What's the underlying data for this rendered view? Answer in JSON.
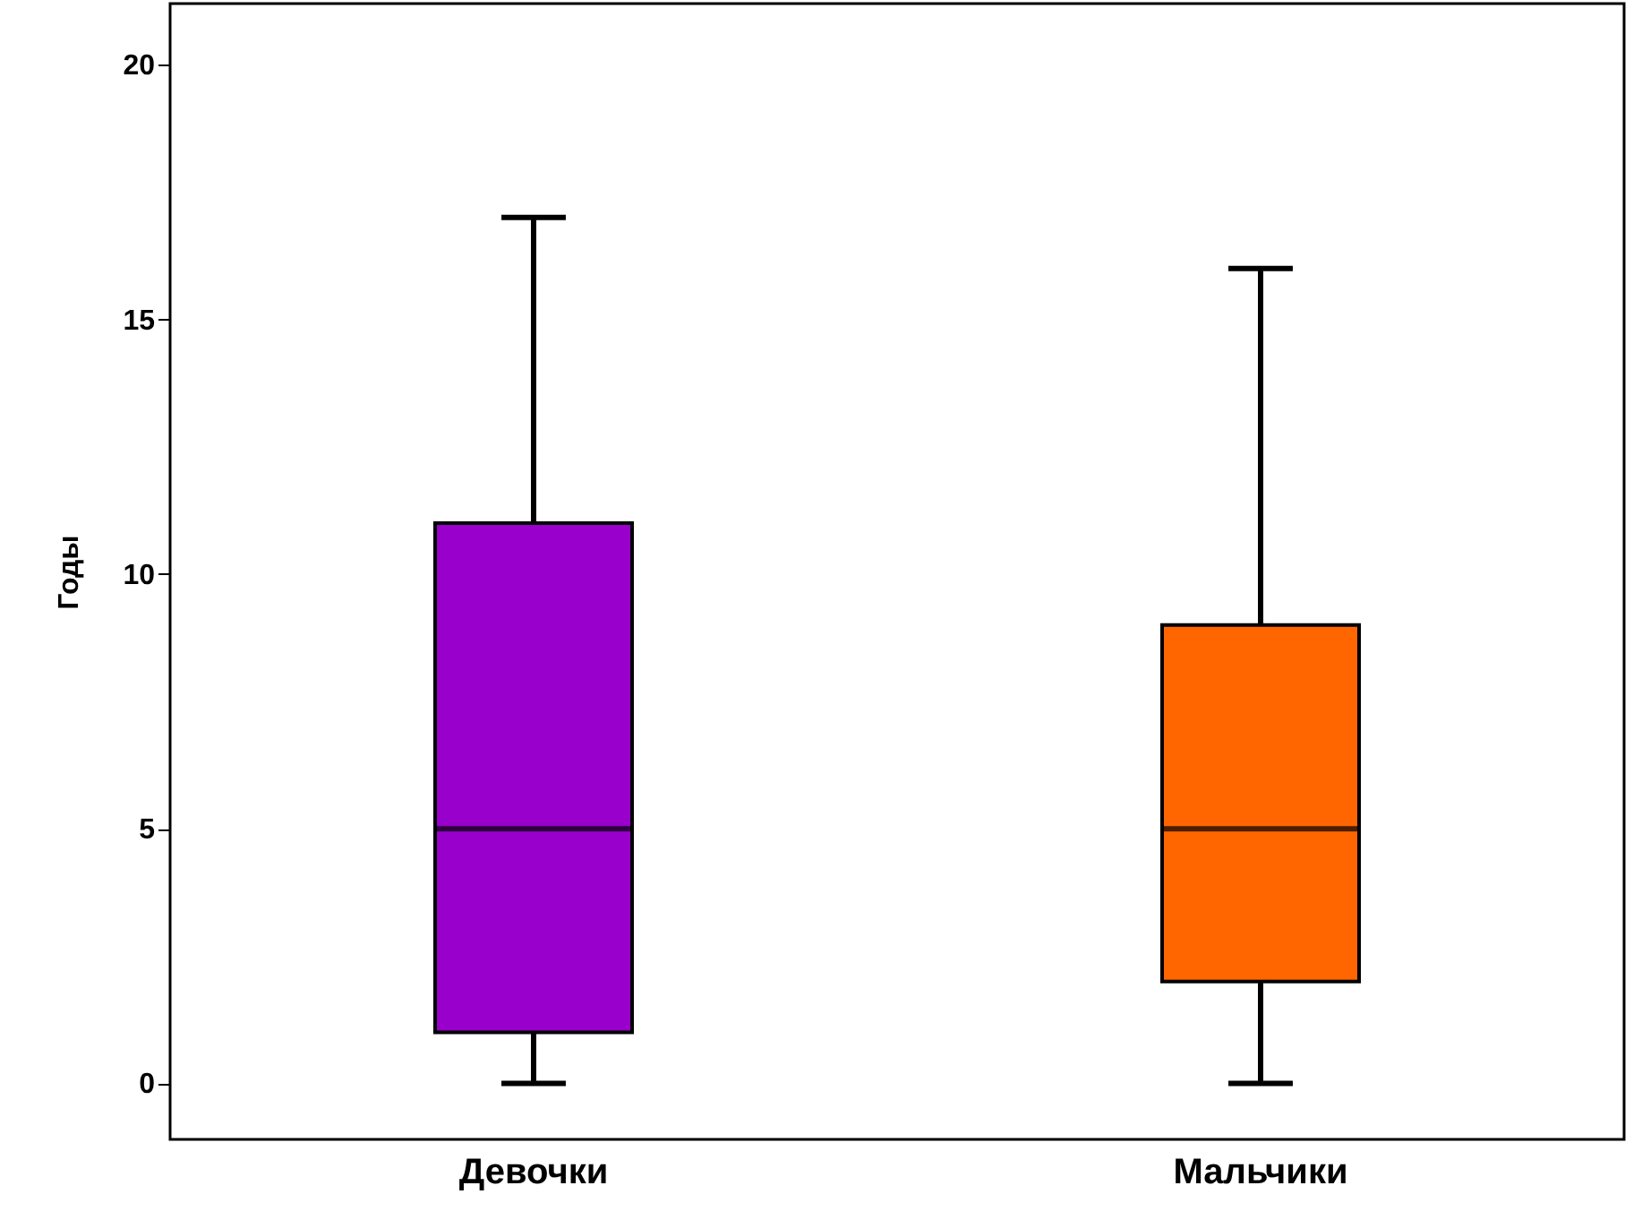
{
  "chart_data": {
    "type": "box",
    "ylabel": "Годы",
    "categories": [
      "Девочки",
      "Мальчики"
    ],
    "colors": [
      "#9900cc",
      "#ff6600"
    ],
    "boxes": [
      {
        "low": 0,
        "q1": 1,
        "median": 5,
        "q3": 11,
        "high": 17
      },
      {
        "low": 0,
        "q1": 2,
        "median": 5,
        "q3": 9,
        "high": 16
      }
    ],
    "ylim": [
      -1.1,
      21.2
    ],
    "yticks": [
      0,
      5,
      10,
      15,
      20
    ],
    "grid": false
  }
}
